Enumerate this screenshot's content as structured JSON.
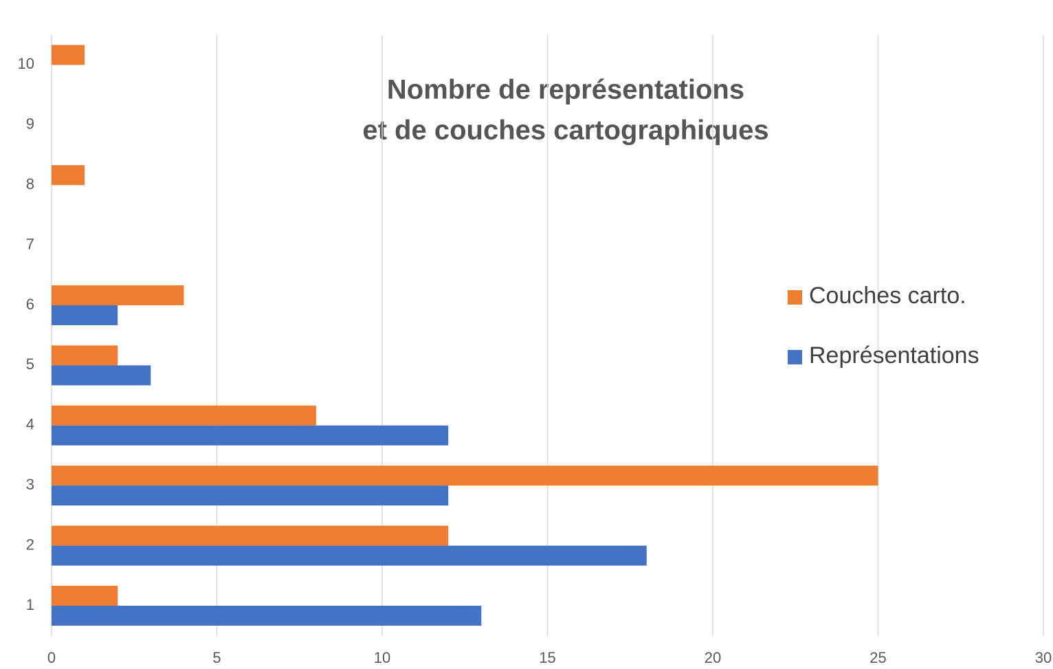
{
  "chart_data": {
    "type": "hbar",
    "title": [
      "Nombre de représentations",
      "et de couches cartographiques"
    ],
    "categories": [
      "1",
      "2",
      "3",
      "4",
      "5",
      "6",
      "7",
      "8",
      "9",
      "10"
    ],
    "series": [
      {
        "name": "Couches carto.",
        "color": "#ed7d31",
        "values": [
          2,
          12,
          25,
          8,
          2,
          4,
          0,
          1,
          0,
          1
        ]
      },
      {
        "name": "Représentations",
        "color": "#4472c4",
        "values": [
          13,
          18,
          12,
          12,
          3,
          2,
          0,
          0,
          0,
          0
        ]
      }
    ],
    "xlim": [
      0,
      30
    ],
    "xticks": [
      0,
      5,
      10,
      15,
      20,
      25,
      30
    ],
    "grid": true,
    "legend": "right"
  }
}
